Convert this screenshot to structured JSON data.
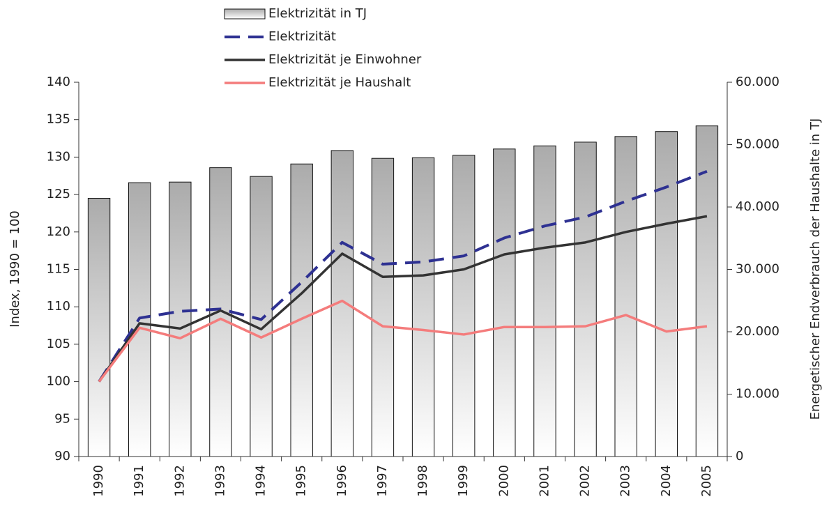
{
  "chart_data": {
    "type": "bar_line",
    "y_label": "Index, 1990 = 100",
    "y2_label": "Energetischer Endverbrauch der Haushalte in TJ",
    "categories": [
      "1990",
      "1991",
      "1992",
      "1993",
      "1994",
      "1995",
      "1996",
      "1997",
      "1998",
      "1999",
      "2000",
      "2001",
      "2002",
      "2003",
      "2004",
      "2005"
    ],
    "ylim": [
      90,
      140
    ],
    "yticks": [
      90,
      95,
      100,
      105,
      110,
      115,
      120,
      125,
      130,
      135,
      140
    ],
    "y2lim": [
      0,
      60000
    ],
    "y2ticks": [
      {
        "value": 0,
        "label": "0"
      },
      {
        "value": 10000,
        "label": "10.000"
      },
      {
        "value": 20000,
        "label": "20.000"
      },
      {
        "value": 30000,
        "label": "30.000"
      },
      {
        "value": 40000,
        "label": "40.000"
      },
      {
        "value": 50000,
        "label": "50.000"
      },
      {
        "value": 60000,
        "label": "60.000"
      }
    ],
    "legend": "top",
    "series": [
      {
        "name": "Elektrizität in TJ",
        "kind": "bar",
        "axis": "y2",
        "color": "#b0b0b0",
        "values": [
          41400,
          43900,
          44000,
          46300,
          44900,
          46900,
          49050,
          47800,
          47900,
          48300,
          49300,
          49800,
          50400,
          51300,
          52100,
          53000
        ]
      },
      {
        "name": "Elektrizität",
        "kind": "line",
        "dashed": true,
        "color": "#2e3192",
        "values": [
          100,
          108.5,
          109.4,
          109.7,
          108.3,
          113.3,
          118.6,
          115.7,
          116,
          116.8,
          119.2,
          120.8,
          122,
          124.1,
          126,
          128.1
        ]
      },
      {
        "name": "Elektrizität je Einwohner",
        "kind": "line",
        "color": "#333333",
        "values": [
          100,
          107.8,
          107.1,
          109.5,
          107,
          111.8,
          117.1,
          114,
          114.2,
          115,
          117,
          117.9,
          118.6,
          120,
          121.1,
          122.1
        ]
      },
      {
        "name": "Elektrizität je Haushalt",
        "kind": "line",
        "color": "#f47c7c",
        "values": [
          100,
          107.2,
          105.8,
          108.4,
          105.9,
          108.4,
          110.8,
          107.4,
          106.9,
          106.3,
          107.3,
          107.3,
          107.4,
          108.9,
          106.7,
          107.4
        ]
      }
    ]
  }
}
